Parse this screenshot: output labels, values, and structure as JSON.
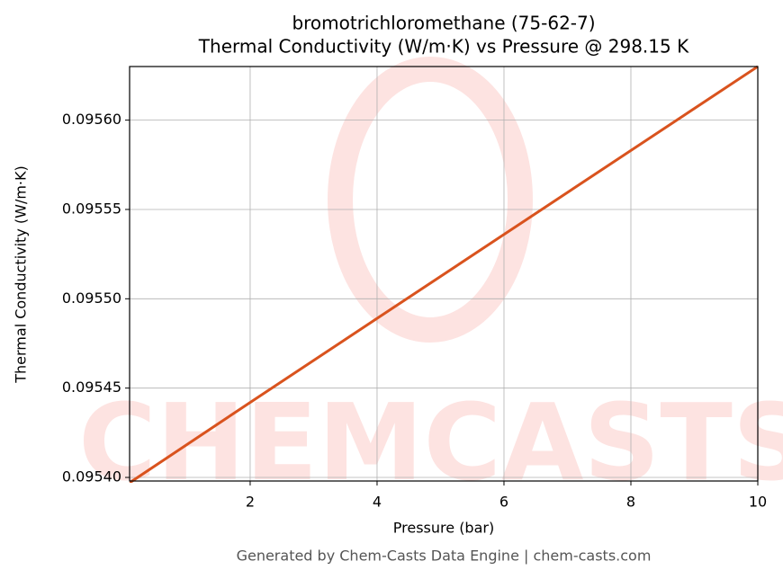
{
  "chart_data": {
    "type": "line",
    "title": "bromotrichloromethane (75-62-7)",
    "subtitle": "Thermal Conductivity (W/m·K) vs Pressure @ 298.15 K",
    "x_label": "Pressure (bar)",
    "y_label": "Thermal Conductivity (W/m·K)",
    "footer": "Generated by Chem-Casts Data Engine | chem-casts.com",
    "watermark": "CHEMCASTS",
    "x": [
      0.1,
      2,
      4,
      6,
      8,
      10
    ],
    "series": [
      {
        "name": "Thermal Conductivity",
        "color": "#d9531e",
        "values": [
          0.095397,
          0.095442,
          0.095489,
          0.095536,
          0.095583,
          0.09563
        ]
      }
    ],
    "xlim": [
      0.1,
      10
    ],
    "ylim": [
      0.095398,
      0.09563
    ],
    "xticks": [
      2,
      4,
      6,
      8,
      10
    ],
    "yticks": [
      {
        "value": 0.0954,
        "label": "0.09540"
      },
      0.09545,
      {
        "value": 0.0955,
        "label": "0.09550"
      },
      0.09555,
      {
        "value": 0.0956,
        "label": "0.09560"
      }
    ],
    "grid": true
  }
}
